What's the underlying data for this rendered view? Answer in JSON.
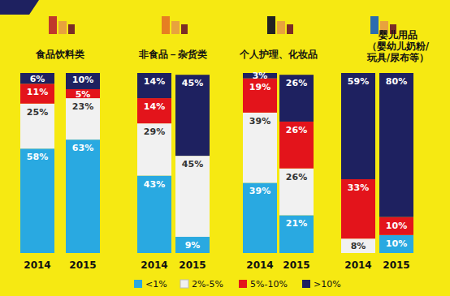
{
  "chart_data": {
    "type": "bar",
    "stacked": true,
    "data_labels": true,
    "tick_labels": "x",
    "legend": "bottom",
    "ylim": [
      0,
      100
    ],
    "categories": [
      "食品饮料类",
      "非食品－杂货类",
      "个人护理、化妆品",
      "婴儿用品\n（婴幼儿奶粉/\n玩具/尿布等）"
    ],
    "years": [
      "2014",
      "2015"
    ],
    "series": [
      {
        "name": "<1%",
        "color": "#29a9e1",
        "values": [
          [
            58,
            63
          ],
          [
            43,
            9
          ],
          [
            39,
            21
          ],
          [
            null,
            10
          ]
        ],
        "value_labels": [
          [
            "58%",
            "63%"
          ],
          [
            "43%",
            "9%"
          ],
          [
            "39%",
            "21%"
          ],
          [
            null,
            "10%"
          ]
        ]
      },
      {
        "name": "2%-5%",
        "color": "#f1f1f1",
        "values": [
          [
            25,
            23
          ],
          [
            29,
            45
          ],
          [
            39,
            26
          ],
          [
            8,
            null
          ]
        ],
        "value_labels": [
          [
            "25%",
            "23%"
          ],
          [
            "29%",
            "45%"
          ],
          [
            "39%",
            "26%"
          ],
          [
            "8%",
            null
          ]
        ]
      },
      {
        "name": "5%-10%",
        "color": "#e3141b",
        "values": [
          [
            11,
            5
          ],
          [
            14,
            null
          ],
          [
            19,
            26
          ],
          [
            33,
            10
          ]
        ],
        "value_labels": [
          [
            "11%",
            "5%"
          ],
          [
            "14%",
            null
          ],
          [
            "19%",
            "26%"
          ],
          [
            "33%",
            "10%"
          ]
        ]
      },
      {
        "name": ">10%",
        "color": "#1e2160",
        "values": [
          [
            6,
            10
          ],
          [
            14,
            45
          ],
          [
            3,
            26
          ],
          [
            59,
            80
          ]
        ],
        "value_labels": [
          [
            "6%",
            "10%"
          ],
          [
            "14%",
            "45%"
          ],
          [
            "3%",
            "26%"
          ],
          [
            "59%",
            "80%"
          ]
        ]
      }
    ]
  }
}
